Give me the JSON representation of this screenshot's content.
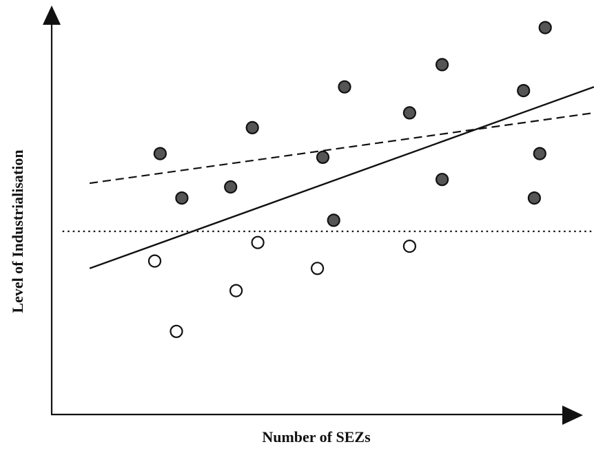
{
  "chart_data": {
    "type": "scatter",
    "title": "",
    "xlabel": "Number of SEZs",
    "ylabel": "Level of Industrialisation",
    "xlim": [
      0,
      100
    ],
    "ylim": [
      0,
      100
    ],
    "grid": false,
    "legend": "none",
    "series": [
      {
        "marker": "filled-circle",
        "fill": "#555555",
        "points": [
          [
            20,
            63
          ],
          [
            24,
            51
          ],
          [
            33,
            54
          ],
          [
            37,
            70
          ],
          [
            50,
            62
          ],
          [
            52,
            45
          ],
          [
            54,
            81
          ],
          [
            66,
            74
          ],
          [
            72,
            56
          ],
          [
            72,
            87
          ],
          [
            87,
            80
          ],
          [
            89,
            51
          ],
          [
            90,
            63
          ],
          [
            91,
            97
          ]
        ]
      },
      {
        "marker": "open-circle",
        "fill": "#ffffff",
        "points": [
          [
            19,
            34
          ],
          [
            23,
            15
          ],
          [
            34,
            26
          ],
          [
            38,
            39
          ],
          [
            49,
            32
          ],
          [
            66,
            38
          ]
        ]
      }
    ],
    "lines": [
      {
        "style": "solid",
        "points": [
          [
            7,
            32
          ],
          [
            100,
            81
          ]
        ]
      },
      {
        "style": "dashed",
        "points": [
          [
            7,
            55
          ],
          [
            100,
            74
          ]
        ]
      },
      {
        "style": "dotted",
        "points": [
          [
            2,
            42
          ],
          [
            100,
            42
          ]
        ]
      }
    ]
  }
}
